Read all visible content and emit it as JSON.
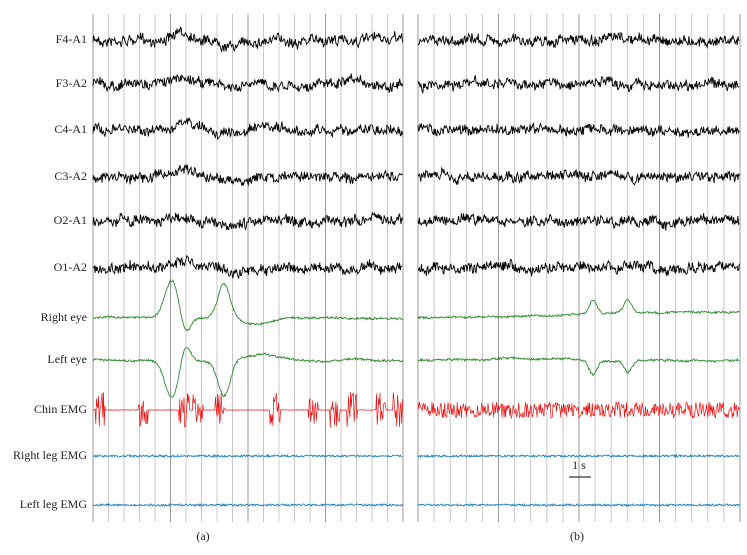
{
  "channels": [
    "F4-A1",
    "F3-A2",
    "C4-A1",
    "C3-A2",
    "O2-A1",
    "O1-A2",
    "Right eye",
    "Left eye",
    "Chin EMG",
    "Right leg EMG",
    "Left leg EMG"
  ],
  "panels": [
    {
      "label": "(a)"
    },
    {
      "label": "(b)"
    }
  ],
  "scale_bar": "1 s"
}
